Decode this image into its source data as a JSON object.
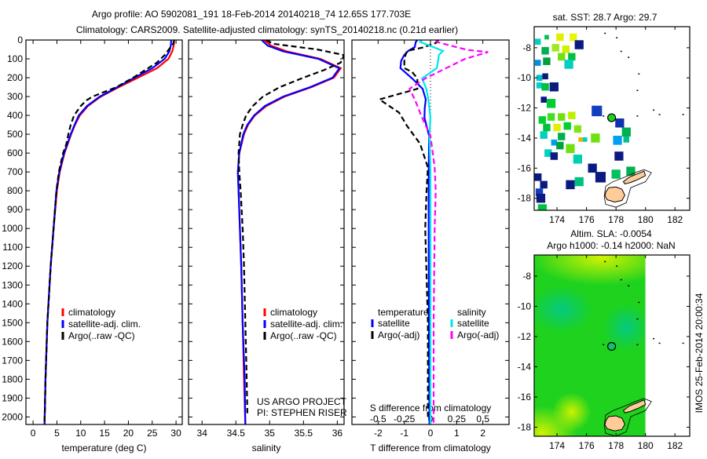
{
  "title": {
    "line1": "Argo profile: AO 5902081_191 18-Feb-2014 20140218_74 12.65S 177.703E",
    "line2": "Climatology: CARS2009. Satellite-adjusted climatology: synTS_20140218.nc (0.21d earlier)"
  },
  "credit": {
    "project": "US ARGO PROJECT",
    "pi": "PI: STEPHEN RISER"
  },
  "footer_vertical": "IMOS 25-Feb-2014 20:00:34",
  "chart_data": [
    {
      "type": "line",
      "id": "temperature",
      "xlabel": "temperature (deg C)",
      "ylabel": "",
      "xlim": [
        -1.5,
        31.3
      ],
      "ylim": [
        0,
        2040
      ],
      "y_inverted": true,
      "xticks": [
        0,
        5,
        10,
        15,
        20,
        25,
        30
      ],
      "xtick_labels": [
        "0",
        "5",
        "10",
        "15",
        "20",
        "25",
        "30"
      ],
      "yticks": [
        0,
        100,
        200,
        300,
        400,
        500,
        600,
        700,
        800,
        900,
        1000,
        1100,
        1200,
        1300,
        1400,
        1500,
        1600,
        1700,
        1800,
        1900,
        2000
      ],
      "ytick_labels": [
        "0",
        "100",
        "200",
        "300",
        "400",
        "500",
        "600",
        "700",
        "800",
        "900",
        "1000",
        "1100",
        "1200",
        "1300",
        "1400",
        "1500",
        "1600",
        "1700",
        "1800",
        "1900",
        "2000"
      ],
      "legend": [
        "climatology",
        "satellite-adj. clim.",
        "Argo(..raw -QC)"
      ],
      "legend_placement": "lower-left",
      "series": [
        {
          "name": "climatology",
          "color": "#ff0000",
          "dashed": false,
          "depth": [
            0,
            30,
            60,
            100,
            150,
            200,
            250,
            300,
            350,
            400,
            450,
            500,
            600,
            700,
            800,
            1000,
            1200,
            1500,
            1800,
            2040
          ],
          "values": [
            29.6,
            29.5,
            29.2,
            28.4,
            26.0,
            22.0,
            18.0,
            14.2,
            11.5,
            9.8,
            8.8,
            8.0,
            6.6,
            5.6,
            5.0,
            4.3,
            3.7,
            3.0,
            2.6,
            2.4
          ]
        },
        {
          "name": "satellite-adj. clim.",
          "color": "#0000ff",
          "dashed": false,
          "depth": [
            0,
            30,
            60,
            100,
            150,
            200,
            250,
            300,
            350,
            400,
            450,
            500,
            600,
            700,
            800,
            1000,
            1200,
            1500,
            1800,
            2040
          ],
          "values": [
            29.0,
            28.9,
            28.6,
            27.6,
            25.0,
            21.3,
            17.7,
            14.0,
            11.3,
            9.6,
            8.7,
            7.9,
            6.5,
            5.5,
            4.9,
            4.3,
            3.7,
            3.0,
            2.6,
            2.4
          ]
        },
        {
          "name": "Argo(..raw -QC)",
          "color": "#000000",
          "dashed": true,
          "depth": [
            0,
            20,
            50,
            80,
            120,
            160,
            200,
            250,
            300,
            320,
            350,
            400,
            450,
            500,
            550,
            600,
            700,
            800,
            1000,
            1200,
            1500,
            1800,
            2040
          ],
          "values": [
            29.6,
            29.4,
            28.5,
            27.6,
            26.0,
            23.5,
            21.0,
            17.5,
            12.5,
            11.2,
            10.0,
            8.6,
            7.9,
            7.4,
            7.0,
            6.3,
            5.4,
            4.9,
            4.3,
            3.7,
            3.0,
            2.6,
            2.4
          ]
        }
      ]
    },
    {
      "type": "line",
      "id": "salinity",
      "xlabel": "salinity",
      "xlim": [
        33.8,
        36.1
      ],
      "ylim": [
        0,
        2040
      ],
      "y_inverted": true,
      "xticks": [
        34,
        34.5,
        35,
        35.5,
        36
      ],
      "xtick_labels": [
        "34",
        "34.5",
        "35",
        "35.5",
        "36"
      ],
      "legend": [
        "climatology",
        "satellite-adj. clim.",
        "Argo(..raw -QC)"
      ],
      "legend_placement": "lower-right",
      "series": [
        {
          "name": "climatology",
          "color": "#ff0000",
          "dashed": false,
          "depth": [
            0,
            30,
            60,
            100,
            150,
            200,
            250,
            300,
            350,
            400,
            450,
            500,
            600,
            700,
            800,
            1000,
            1200,
            1500,
            1800,
            2040
          ],
          "values": [
            34.92,
            35.02,
            35.25,
            35.75,
            36.05,
            35.95,
            35.62,
            35.22,
            34.95,
            34.78,
            34.68,
            34.62,
            34.55,
            34.53,
            34.54,
            34.56,
            34.58,
            34.6,
            34.62,
            34.64
          ]
        },
        {
          "name": "satellite-adj. clim.",
          "color": "#0000ff",
          "dashed": false,
          "depth": [
            0,
            30,
            60,
            100,
            150,
            200,
            250,
            300,
            350,
            400,
            450,
            500,
            600,
            700,
            800,
            1000,
            1200,
            1500,
            1800,
            2040
          ],
          "values": [
            34.88,
            34.97,
            35.2,
            35.72,
            36.03,
            35.93,
            35.6,
            35.2,
            34.93,
            34.77,
            34.67,
            34.61,
            34.55,
            34.53,
            34.54,
            34.56,
            34.58,
            34.6,
            34.63,
            34.64
          ]
        },
        {
          "name": "Argo(..raw -QC)",
          "color": "#000000",
          "dashed": true,
          "depth": [
            0,
            20,
            50,
            80,
            120,
            160,
            200,
            250,
            300,
            350,
            400,
            450,
            500,
            600,
            700,
            800,
            1000,
            1200,
            1500,
            1800,
            1980
          ],
          "values": [
            34.95,
            35.05,
            35.7,
            36.1,
            36.05,
            35.8,
            35.5,
            35.15,
            34.9,
            34.75,
            34.65,
            34.6,
            34.56,
            34.54,
            34.55,
            34.57,
            34.6,
            34.62,
            34.64,
            34.66,
            34.67
          ]
        }
      ]
    },
    {
      "type": "line",
      "id": "difference",
      "xlabel": "T difference from climatology",
      "xlabel_top": "S difference from climatology",
      "xlim": [
        -3,
        3
      ],
      "ylim": [
        0,
        2040
      ],
      "y_inverted": true,
      "xticks": [
        -2,
        -1,
        0,
        1,
        2
      ],
      "xtick_labels": [
        "-2",
        "-1",
        "0",
        "1",
        "2"
      ],
      "s_xticks": [
        -0.5,
        -0.25,
        0,
        0.25,
        0.5
      ],
      "s_xtick_labels": [
        "-0.5",
        "-0.25",
        "0",
        "0.25",
        "0.5"
      ],
      "legend_headers": [
        "temperature",
        "salinity"
      ],
      "legend": [
        [
          "satellite",
          "Argo(-adj)"
        ],
        [
          "satellite",
          "Argo(-adj)"
        ]
      ],
      "series": [
        {
          "name": "T satellite",
          "axis": "T",
          "color": "#0000ff",
          "dashed": false,
          "depth": [
            0,
            10,
            37,
            58,
            79,
            110,
            149,
            204,
            259,
            315,
            360,
            412,
            509,
            700,
            1000,
            1500,
            2040
          ],
          "values": [
            -0.5,
            -0.56,
            -0.6,
            -0.85,
            -1.0,
            -1.12,
            -1.15,
            -0.7,
            -0.3,
            -0.18,
            -0.22,
            -0.23,
            -0.05,
            -0.07,
            -0.07,
            -0.06,
            -0.04
          ]
        },
        {
          "name": "T Argo(-adj)",
          "axis": "T",
          "color": "#000000",
          "dashed": true,
          "depth": [
            0,
            16,
            40,
            58,
            100,
            149,
            170,
            204,
            259,
            315,
            385,
            455,
            550,
            676,
            800,
            1000,
            1500,
            2000
          ],
          "values": [
            0.3,
            0.2,
            -0.3,
            -0.9,
            -1.0,
            -1.0,
            -0.7,
            -0.5,
            -0.5,
            -1.95,
            -1.2,
            -0.9,
            -0.4,
            -0.1,
            -0.15,
            -0.2,
            -0.1,
            -0.1
          ]
        },
        {
          "name": "S satellite",
          "axis": "S",
          "color": "#00e5ee",
          "dashed": false,
          "depth": [
            0,
            10,
            58,
            79,
            120,
            149,
            204,
            259,
            315,
            412,
            509,
            700,
            1000,
            1500,
            2040
          ],
          "values": [
            -0.08,
            -0.1,
            0.12,
            0.08,
            0.07,
            0.06,
            -0.08,
            -0.04,
            -0.02,
            0.0,
            -0.01,
            0.0,
            0.0,
            0.0,
            0.0
          ]
        },
        {
          "name": "S Argo(-adj)",
          "axis": "S",
          "color": "#ff00ff",
          "dashed": true,
          "depth": [
            0,
            12,
            52,
            64,
            100,
            149,
            204,
            259,
            315,
            412,
            509,
            676,
            800,
            1000,
            1500,
            2040
          ],
          "values": [
            0.05,
            0.07,
            0.35,
            0.55,
            0.33,
            0.15,
            -0.05,
            -0.2,
            -0.15,
            -0.08,
            0.0,
            0.04,
            0.05,
            0.04,
            0.03,
            0.03
          ]
        }
      ]
    },
    {
      "type": "heatmap",
      "id": "sst-map",
      "title": "sat. SST: 28.7 Argo: 29.7",
      "xlim": [
        172.45,
        183.0
      ],
      "ylim": [
        -18.8,
        -6.6
      ],
      "xticks": [
        174,
        176,
        178,
        180,
        182
      ],
      "xtick_labels": [
        "174",
        "176",
        "178",
        "180",
        "182"
      ],
      "yticks": [
        -8,
        -10,
        -12,
        -14,
        -16,
        -18
      ],
      "ytick_labels": [
        "-8",
        "-10",
        "-12",
        "-14",
        "-16",
        "-18"
      ],
      "argo_position": {
        "lon": 177.703,
        "lat": -12.65,
        "color": "#20d020"
      },
      "cells": [
        [
          173.8,
          -10.6,
          0.6,
          "#0a1a80"
        ],
        [
          173.1,
          -11.45,
          0.4,
          "#0a1a80"
        ],
        [
          173.6,
          -11.7,
          0.6,
          "#00cc33"
        ],
        [
          176.7,
          -12.2,
          0.7,
          "#1040c0"
        ],
        [
          178.25,
          -13.0,
          0.6,
          "#1030b0"
        ],
        [
          178.7,
          -13.6,
          0.6,
          "#00b050"
        ],
        [
          178.1,
          -14.15,
          0.6,
          "#00a0f0"
        ],
        [
          178.7,
          -14.1,
          0.4,
          "#00c090"
        ],
        [
          176.6,
          -14.0,
          0.6,
          "#70e010"
        ],
        [
          178.2,
          -15.2,
          0.6,
          "#0a1a80"
        ],
        [
          176.4,
          -16.0,
          0.6,
          "#0a1a80"
        ],
        [
          176.95,
          -16.6,
          0.7,
          "#0a1a80"
        ],
        [
          178.0,
          -16.4,
          0.6,
          "#00c060"
        ],
        [
          179.0,
          -16.2,
          0.6,
          "#00b050"
        ],
        [
          174.9,
          -17.1,
          0.6,
          "#0a1a80"
        ],
        [
          175.5,
          -16.9,
          0.6,
          "#00c080"
        ],
        [
          175.4,
          -15.4,
          0.6,
          "#00d0b0"
        ],
        [
          174.9,
          -14.7,
          0.6,
          "#70e010"
        ],
        [
          173.3,
          -7.3,
          0.3,
          "#00c060"
        ],
        [
          174.2,
          -7.3,
          0.5,
          "#e0f000"
        ],
        [
          175.1,
          -7.3,
          0.5,
          "#e8f800"
        ],
        [
          175.5,
          -7.8,
          0.6,
          "#0a1a80"
        ],
        [
          172.7,
          -7.6,
          0.4,
          "#00d0c0"
        ],
        [
          173.2,
          -8.2,
          0.5,
          "#00b050"
        ],
        [
          173.9,
          -8.0,
          0.5,
          "#a0e820"
        ],
        [
          174.6,
          -8.1,
          0.5,
          "#d0f000"
        ],
        [
          175.0,
          -8.6,
          0.5,
          "#00c040"
        ],
        [
          174.3,
          -8.6,
          0.5,
          "#70e010"
        ],
        [
          173.3,
          -8.9,
          0.5,
          "#00a040"
        ],
        [
          172.7,
          -9.0,
          0.4,
          "#0090e0"
        ],
        [
          174.8,
          -9.1,
          0.6,
          "#00d0c0"
        ],
        [
          172.8,
          -10.0,
          0.4,
          "#00c0c0"
        ],
        [
          173.2,
          -9.9,
          0.4,
          "#0a1a80"
        ],
        [
          172.8,
          -10.5,
          0.4,
          "#00d0d0"
        ],
        [
          173.2,
          -10.6,
          0.5,
          "#00c040"
        ],
        [
          173.0,
          -12.8,
          0.5,
          "#00d030"
        ],
        [
          173.6,
          -12.6,
          0.5,
          "#40e020"
        ],
        [
          174.3,
          -12.6,
          0.5,
          "#70e010"
        ],
        [
          175.0,
          -12.5,
          0.5,
          "#c0f000"
        ],
        [
          173.3,
          -13.3,
          0.5,
          "#00c040"
        ],
        [
          174.0,
          -13.3,
          0.5,
          "#e0f000"
        ],
        [
          174.7,
          -13.2,
          0.5,
          "#00d030"
        ],
        [
          175.4,
          -13.4,
          0.5,
          "#80e810"
        ],
        [
          173.1,
          -13.8,
          0.5,
          "#00d0c0"
        ],
        [
          174.3,
          -13.9,
          0.5,
          "#00b050"
        ],
        [
          175.6,
          -14.1,
          0.3,
          "#f0b000"
        ],
        [
          175.9,
          -14.1,
          0.3,
          "#00d0c0"
        ],
        [
          173.8,
          -14.3,
          0.4,
          "#00a0f0"
        ],
        [
          174.2,
          -14.5,
          0.5,
          "#00a040"
        ],
        [
          173.4,
          -15.0,
          0.5,
          "#00d0c0"
        ],
        [
          173.8,
          -15.2,
          0.5,
          "#0a1a80"
        ],
        [
          172.7,
          -16.6,
          0.5,
          "#0a1a80"
        ],
        [
          173.1,
          -17.1,
          0.5,
          "#0a1a80"
        ],
        [
          172.8,
          -17.6,
          0.5,
          "#1040c0"
        ],
        [
          172.9,
          -18.0,
          0.6,
          "#0a1a80"
        ],
        [
          173.0,
          -18.7,
          0.6,
          "#00c040"
        ]
      ]
    },
    {
      "type": "heatmap",
      "id": "sla-map",
      "title": "Altim. SLA: -0.0054",
      "subtitle": "Argo h1000: -0.14 h2000: NaN",
      "xlim": [
        172.45,
        183.0
      ],
      "ylim": [
        -18.6,
        -6.6
      ],
      "data_east_limit": 180,
      "xticks": [
        174,
        176,
        178,
        180,
        182
      ],
      "xtick_labels": [
        "174",
        "176",
        "178",
        "180",
        "182"
      ],
      "yticks": [
        -8,
        -10,
        -12,
        -14,
        -16,
        -18
      ],
      "ytick_labels": [
        "-8",
        "-10",
        "-12",
        "-14",
        "-16",
        "-18"
      ],
      "argo_position": {
        "lon": 177.703,
        "lat": -12.65,
        "color": "#10c070"
      },
      "colors": {
        "base": "#1ed21e",
        "high": "#d8f400",
        "low": "#00c890"
      }
    }
  ]
}
